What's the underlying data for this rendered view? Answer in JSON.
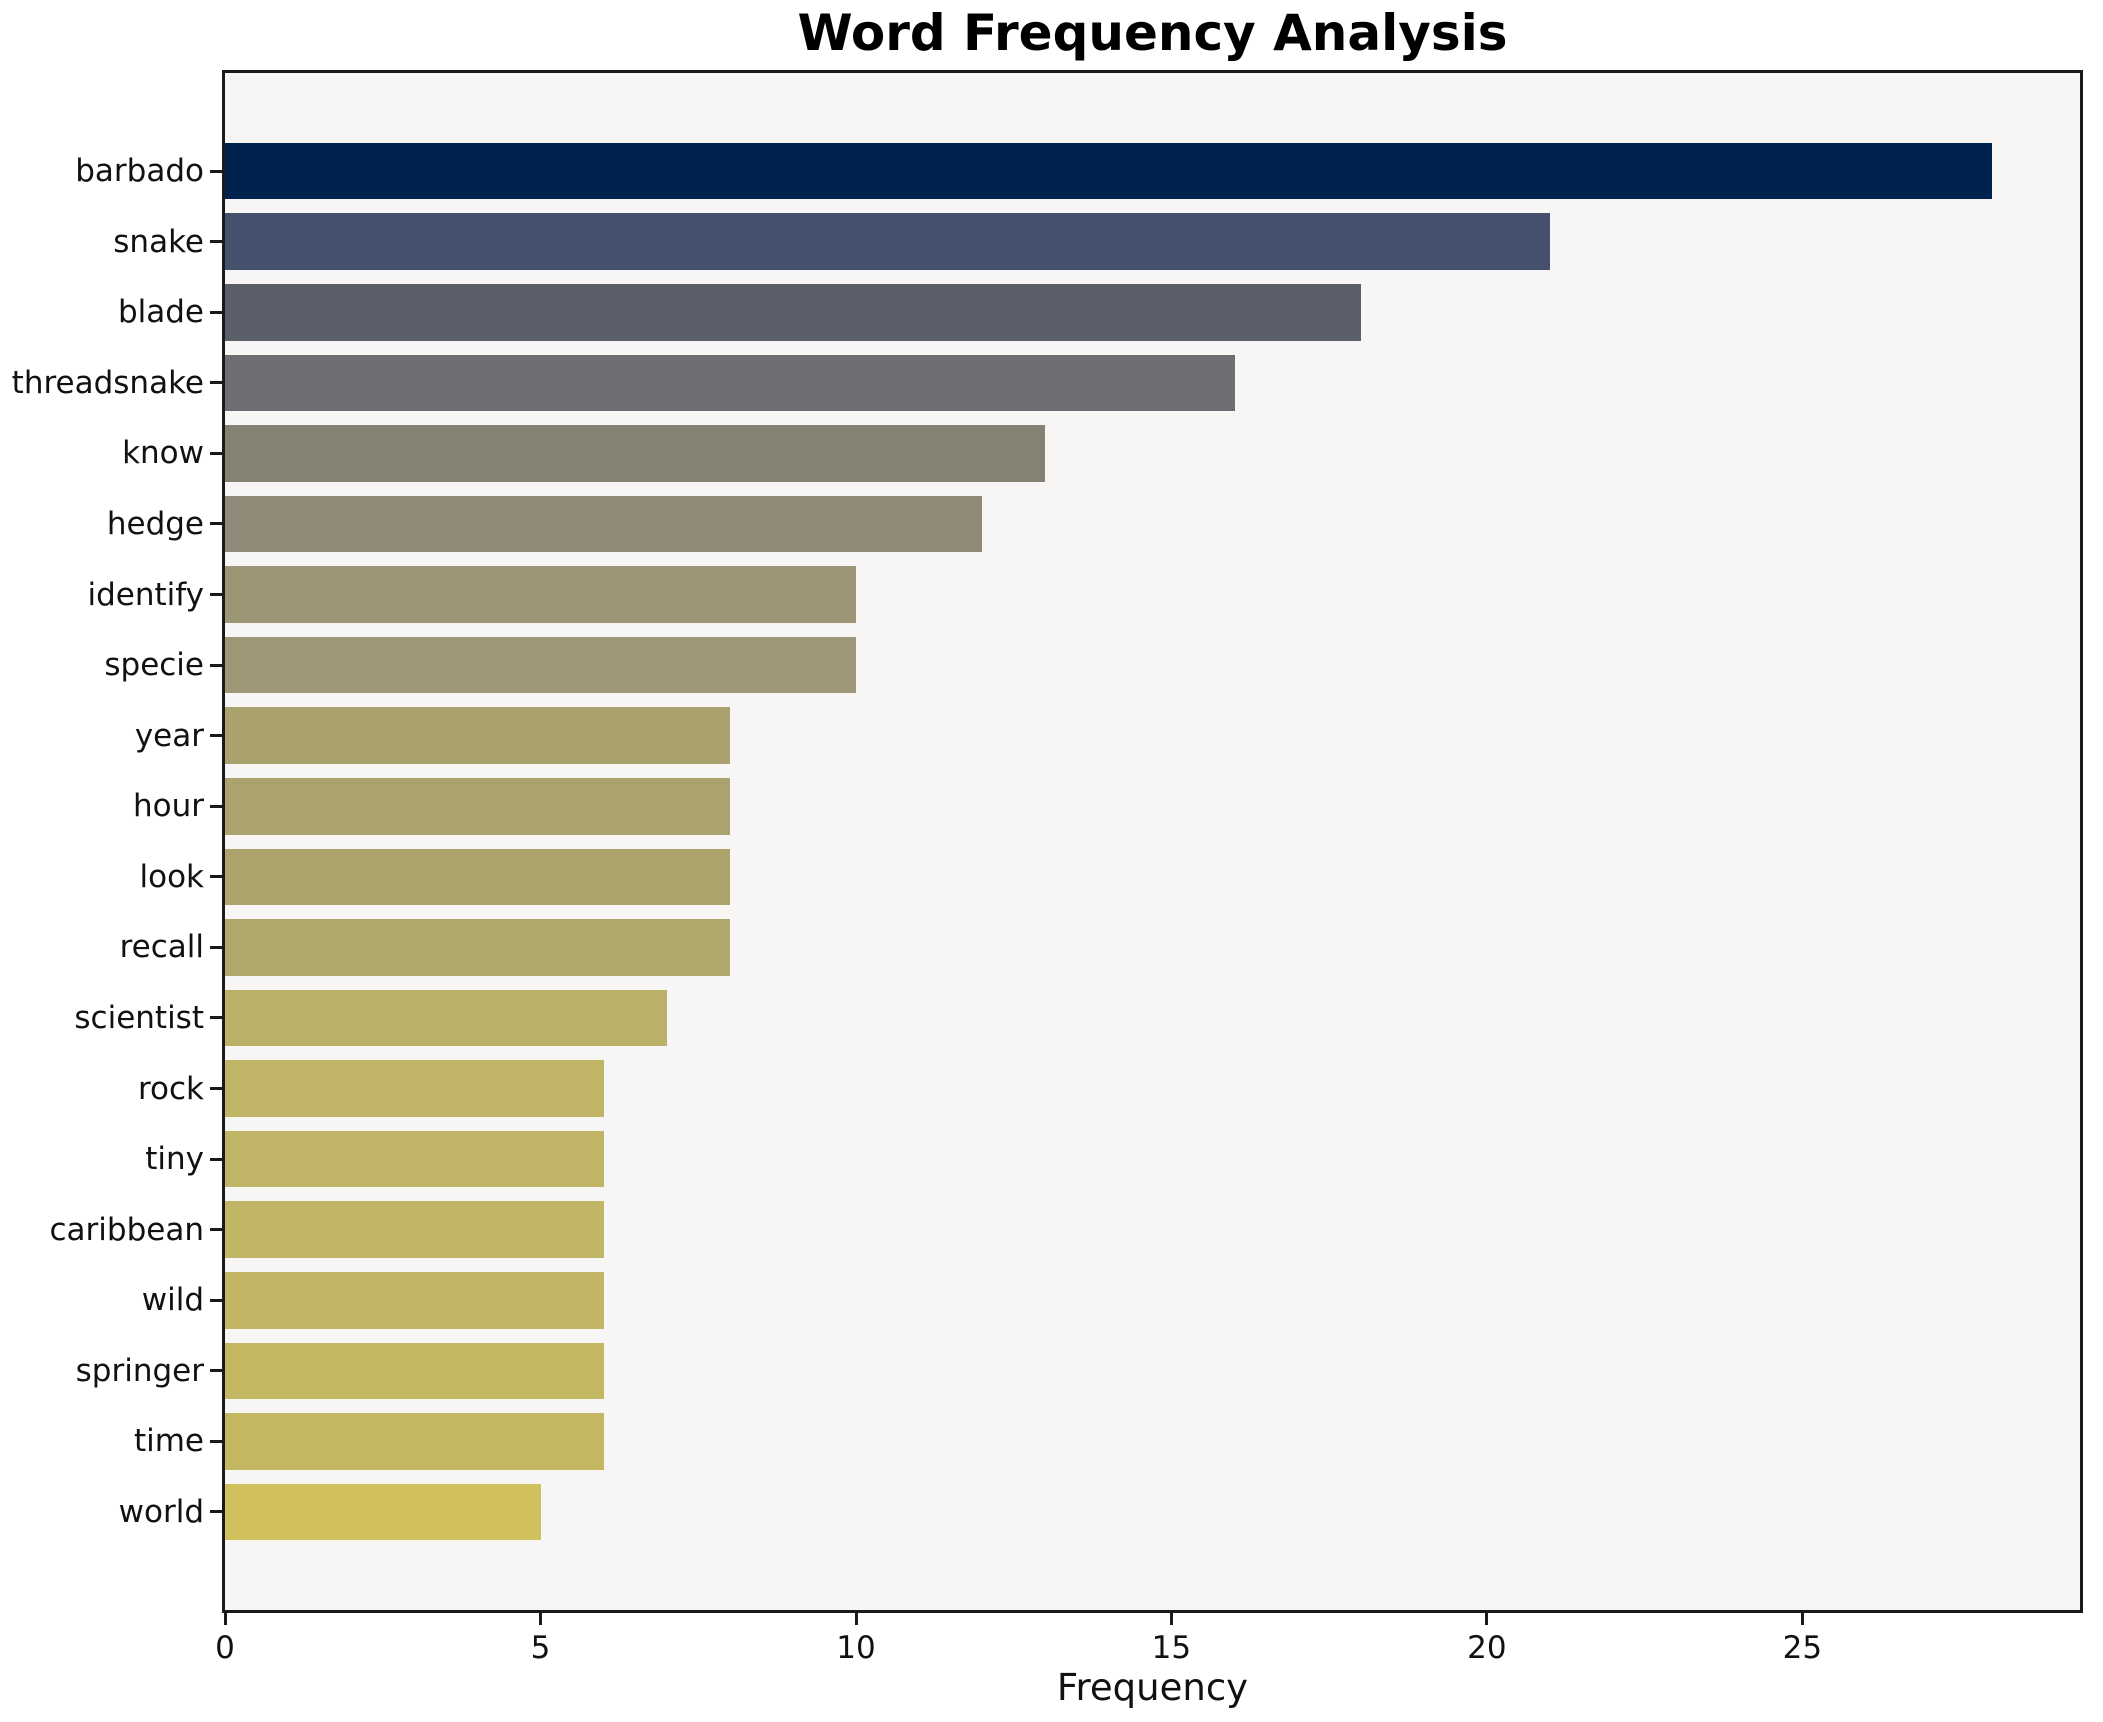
{
  "title": "Word Frequency Analysis",
  "chart_data": {
    "type": "bar",
    "orientation": "horizontal",
    "title": "Word Frequency Analysis",
    "xlabel": "Frequency",
    "ylabel": "",
    "categories": [
      "barbado",
      "snake",
      "blade",
      "threadsnake",
      "know",
      "hedge",
      "identify",
      "specie",
      "year",
      "hour",
      "look",
      "recall",
      "scientist",
      "rock",
      "tiny",
      "caribbean",
      "wild",
      "springer",
      "time",
      "world"
    ],
    "values": [
      28,
      21,
      18,
      16,
      13,
      12,
      10,
      10,
      8,
      8,
      8,
      8,
      7,
      6,
      6,
      6,
      6,
      6,
      6,
      5
    ],
    "bar_colors": [
      "#00224e",
      "#44506c",
      "#5b5f6a",
      "#6d6e71",
      "#858173",
      "#8f8977",
      "#9c9677",
      "#9d9777",
      "#aaa26e",
      "#aba36e",
      "#ada46d",
      "#afa76c",
      "#bcb168",
      "#c0b466",
      "#c0b467",
      "#c1b566",
      "#c2b565",
      "#c4b762",
      "#c4b762",
      "#d0c15c"
    ],
    "xticks": [
      0,
      5,
      10,
      15,
      20,
      25
    ],
    "xlim": [
      0,
      29.4
    ],
    "grid": false,
    "legend": "none",
    "plot_background": "#f7f6f4",
    "spine_color": "#1a1a1a",
    "colormap": "cividis"
  }
}
